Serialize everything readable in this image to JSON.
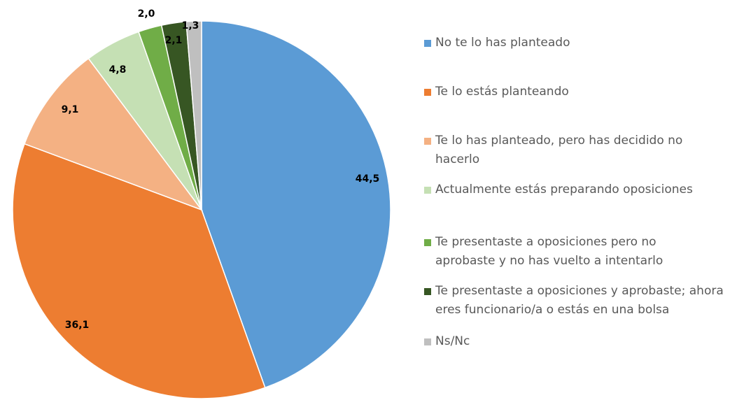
{
  "chart_data": {
    "type": "pie",
    "categories": [
      "No te lo has planteado",
      "Te lo estás planteando",
      "Te lo has planteado, pero has decidido no hacerlo",
      "Actualmente estás preparando oposiciones",
      "Te presentaste a oposiciones pero no aprobaste y no has vuelto a intentarlo",
      "Te presentaste a oposiciones y aprobaste; ahora eres funcionario/a o estás en una bolsa",
      "Ns/Nc"
    ],
    "values": [
      44.5,
      36.1,
      9.1,
      4.8,
      2.0,
      2.1,
      1.3
    ],
    "value_labels": [
      "44,5",
      "36,1",
      "9,1",
      "4,8",
      "2,0",
      "2,1",
      "1,3"
    ],
    "colors": [
      "#5b9bd5",
      "#ed7d31",
      "#f4b183",
      "#c5e0b4",
      "#70ad47",
      "#375623",
      "#bfbfbf"
    ],
    "legend": "right"
  }
}
